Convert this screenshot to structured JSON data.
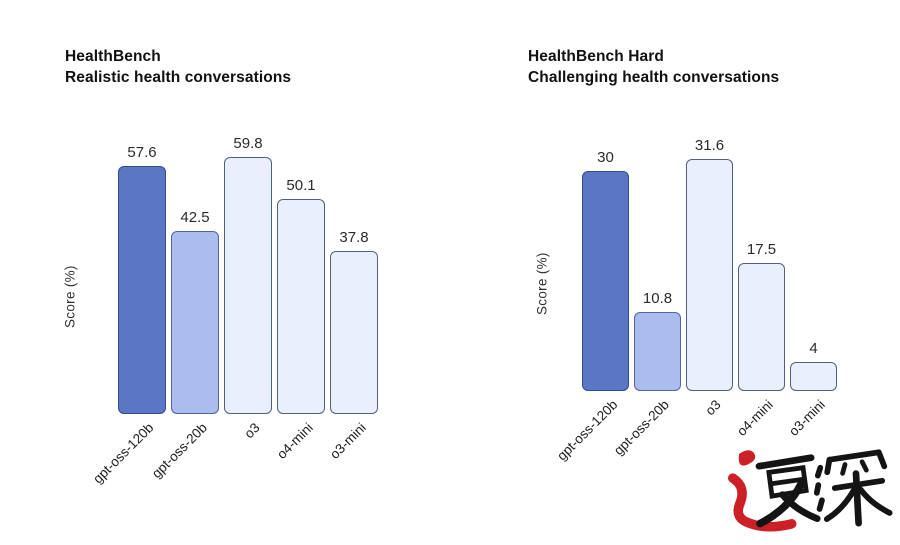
{
  "chart_data": [
    {
      "type": "bar",
      "title": "HealthBench",
      "subtitle": "Realistic health conversations",
      "ylabel": "Score (%)",
      "categories": [
        "gpt-oss-120b",
        "gpt-oss-20b",
        "o3",
        "o4-mini",
        "o3-mini"
      ],
      "values": [
        57.6,
        42.5,
        59.8,
        50.1,
        37.8
      ],
      "value_labels": [
        "57.6",
        "42.5",
        "59.8",
        "50.1",
        "37.8"
      ],
      "ylim": [
        0,
        60
      ],
      "grid": false,
      "legend": "none",
      "bar_labels_position": "above"
    },
    {
      "type": "bar",
      "title": "HealthBench Hard",
      "subtitle": "Challenging health conversations",
      "ylabel": "Score (%)",
      "categories": [
        "gpt-oss-120b",
        "gpt-oss-20b",
        "o3",
        "o4-mini",
        "o3-mini"
      ],
      "values": [
        30,
        10.8,
        31.6,
        17.5,
        4
      ],
      "value_labels": [
        "30",
        "10.8",
        "31.6",
        "17.5",
        "4"
      ],
      "ylim": [
        0,
        35
      ],
      "grid": false,
      "legend": "none",
      "bar_labels_position": "above"
    }
  ],
  "colors": {
    "bar_fills": [
      "#5b76c4",
      "#aabdee",
      "#e9effb",
      "#e9effb",
      "#e9effb"
    ],
    "bar_borders": [
      "#35498f",
      "#55639f",
      "#525f7e",
      "#525f7e",
      "#525f7e"
    ],
    "title_text": "#111111",
    "label_text": "#1c1c1c",
    "watermark_red": "#cc1f26",
    "watermark_ink": "#141414",
    "background": "#ffffff"
  },
  "watermark": {
    "text": "速深"
  }
}
